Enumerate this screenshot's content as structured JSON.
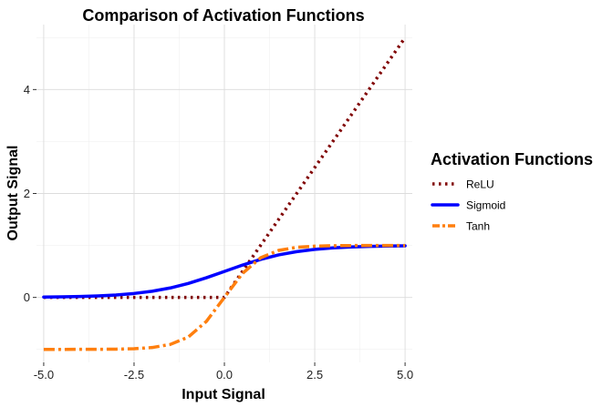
{
  "chart_data": {
    "type": "line",
    "title": "Comparison of Activation Functions",
    "xlabel": "Input Signal",
    "ylabel": "Output Signal",
    "xlim": [
      -5.2,
      5.2
    ],
    "ylim": [
      -1.25,
      5.25
    ],
    "xticks": [
      -5.0,
      -2.5,
      0.0,
      2.5,
      5.0
    ],
    "xtick_labels": [
      "-5.0",
      "-2.5",
      "0.0",
      "2.5",
      "5.0"
    ],
    "yticks": [
      0,
      2,
      4
    ],
    "ytick_labels": [
      "0",
      "2",
      "4"
    ],
    "grid": true,
    "legend": {
      "title": "Activation Functions",
      "position": "right",
      "entries": [
        "ReLU",
        "Sigmoid",
        "Tanh"
      ]
    },
    "x": [
      -5.0,
      -4.5,
      -4.0,
      -3.5,
      -3.0,
      -2.5,
      -2.0,
      -1.5,
      -1.0,
      -0.5,
      0.0,
      0.5,
      1.0,
      1.5,
      2.0,
      2.5,
      3.0,
      3.5,
      4.0,
      4.5,
      5.0
    ],
    "series": [
      {
        "name": "ReLU",
        "color": "#800000",
        "style": "dotted",
        "values": [
          0,
          0,
          0,
          0,
          0,
          0,
          0,
          0,
          0,
          0,
          0,
          0.5,
          1.0,
          1.5,
          2.0,
          2.5,
          3.0,
          3.5,
          4.0,
          4.5,
          5.0
        ]
      },
      {
        "name": "Sigmoid",
        "color": "#0000ff",
        "style": "solid",
        "values": [
          0.007,
          0.011,
          0.018,
          0.029,
          0.047,
          0.076,
          0.119,
          0.182,
          0.269,
          0.378,
          0.5,
          0.622,
          0.731,
          0.818,
          0.881,
          0.924,
          0.953,
          0.971,
          0.982,
          0.989,
          0.993
        ]
      },
      {
        "name": "Tanh",
        "color": "#ff7f0e",
        "style": "dashdot",
        "values": [
          -1.0,
          -1.0,
          -0.999,
          -0.998,
          -0.995,
          -0.987,
          -0.964,
          -0.905,
          -0.762,
          -0.462,
          0.0,
          0.462,
          0.762,
          0.905,
          0.964,
          0.987,
          0.995,
          0.998,
          0.999,
          1.0,
          1.0
        ]
      }
    ]
  }
}
